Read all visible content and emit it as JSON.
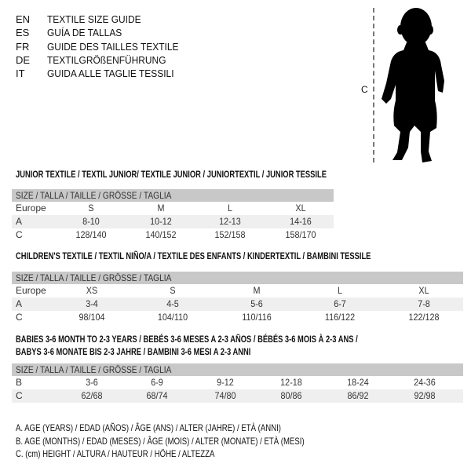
{
  "languages": [
    {
      "code": "EN",
      "name": "TEXTILE SIZE GUIDE"
    },
    {
      "code": "ES",
      "name": "GUÍA DE TALLAS"
    },
    {
      "code": "FR",
      "name": "GUIDE DES TAILLES TEXTILE"
    },
    {
      "code": "DE",
      "name": "TEXTILGRÖßENFÜHRUNG"
    },
    {
      "code": "IT",
      "name": "GUIDA ALLE TAGLIE TESSILI"
    }
  ],
  "figure": {
    "measure_label": "C",
    "icon": "child-silhouette-icon"
  },
  "sections": [
    {
      "title": [
        "JUNIOR TEXTILE / TEXTIL JUNIOR/ TEXTILE JUNIOR / JUNIORTEXTIL / JUNIOR TESSILE"
      ],
      "header": "SIZE / TALLA / TAILLE / GRÖSSE / TAGLIA",
      "rows": [
        {
          "label": "Europe",
          "cells": [
            "S",
            "M",
            "L",
            "XL"
          ]
        },
        {
          "label": "A",
          "cells": [
            "8-10",
            "10-12",
            "12-13",
            "14-16"
          ]
        },
        {
          "label": "C",
          "cells": [
            "128/140",
            "140/152",
            "152/158",
            "158/170"
          ]
        }
      ]
    },
    {
      "title": [
        "CHILDREN'S TEXTILE / TEXTIL NIÑO/A / TEXTILE DES ENFANTS / KINDERTEXTIL / BAMBINI TESSILE"
      ],
      "header": "SIZE / TALLA / TAILLE / GRÖSSE / TAGLIA",
      "rows": [
        {
          "label": "Europe",
          "cells": [
            "XS",
            "S",
            "M",
            "L",
            "XL"
          ]
        },
        {
          "label": "A",
          "cells": [
            "3-4",
            "4-5",
            "5-6",
            "6-7",
            "7-8"
          ]
        },
        {
          "label": "C",
          "cells": [
            "98/104",
            "104/110",
            "110/116",
            "116/122",
            "122/128"
          ]
        }
      ]
    },
    {
      "title": [
        "BABIES 3-6 MONTH TO 2-3 YEARS / BEBÉS 3-6 MESES A 2-3 AÑOS / BÉBÉS 3-6 MOIS À 2-3 ANS /",
        "BABYS 3-6 MONATE BIS 2-3 JAHRE / BAMBINI 3-6 MESI A 2-3 ANNI"
      ],
      "header": "SIZE / TALLA / TAILLE / GRÖSSE / TAGLIA",
      "rows": [
        {
          "label": "B",
          "cells": [
            "3-6",
            "6-9",
            "9-12",
            "12-18",
            "18-24",
            "24-36"
          ]
        },
        {
          "label": "C",
          "cells": [
            "62/68",
            "68/74",
            "74/80",
            "80/86",
            "86/92",
            "92/98"
          ]
        }
      ]
    }
  ],
  "legend": [
    "A. AGE (YEARS) / EDAD (AÑOS) / ÂGE (ANS) / ALTER (JAHRE) / ETÀ (ANNI)",
    "B. AGE (MONTHS) / EDAD (MESES) / ÂGE (MOIS) / ALTER (MONATE) / ETÀ (MESI)",
    "C. (cm) HEIGHT / ALTURA / HAUTEUR / HÖHE / ALTEZZA"
  ]
}
